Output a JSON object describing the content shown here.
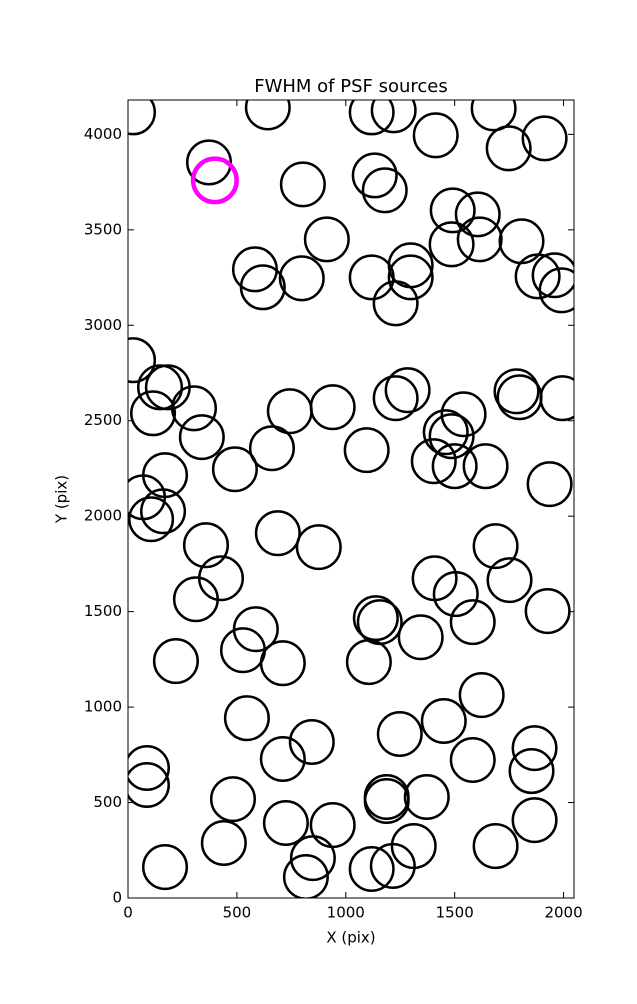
{
  "chart_data": {
    "type": "scatter",
    "title": "FWHM of PSF sources",
    "x_label": "X (pix)",
    "y_label": "Y (pix)",
    "xlim": [
      0,
      2048
    ],
    "ylim": [
      0,
      4180
    ],
    "xticks": [
      0,
      500,
      1000,
      1500,
      2000
    ],
    "yticks": [
      0,
      500,
      1000,
      1500,
      2000,
      2500,
      3000,
      3500,
      4000
    ],
    "radius": 100,
    "grid": false,
    "series": [
      {
        "color": "#000000",
        "line_width": 2.5,
        "x": [
          23,
          642,
          1119,
          1220,
          1679,
          1413,
          1913,
          1748,
          372,
          803,
          1133,
          1179,
          1491,
          1606,
          913,
          1807,
          1486,
          1615,
          583,
          619,
          798,
          1119,
          1298,
          1298,
          1229,
          1881,
          1959,
          1991,
          23,
          147,
          183,
          1284,
          1229,
          1784,
          1798,
          1995,
          303,
          743,
          940,
          115,
          1541,
          339,
          1459,
          1486,
          1096,
          661,
          491,
          1404,
          1500,
          1642,
          170,
          1936,
          69,
          106,
          161,
          688,
          358,
          876,
          1688,
          427,
          1408,
          1752,
          312,
          1505,
          1927,
          1138,
          1156,
          1583,
          587,
          528,
          711,
          220,
          1344,
          1106,
          1624,
          546,
          1450,
          1248,
          844,
          711,
          1867,
          1583,
          87,
          87,
          1853,
          1188,
          1188,
          1372,
          482,
          725,
          940,
          1867,
          440,
          1312,
          1688,
          849,
          170,
          1119,
          1216,
          817
        ],
        "y": [
          4115,
          4141,
          4115,
          4126,
          4136,
          3995,
          3979,
          3927,
          3853,
          3738,
          3785,
          3707,
          3602,
          3581,
          3450,
          3440,
          3424,
          3450,
          3293,
          3199,
          3246,
          3251,
          3314,
          3251,
          3115,
          3256,
          3262,
          3183,
          2817,
          2675,
          2675,
          2660,
          2618,
          2654,
          2623,
          2618,
          2565,
          2550,
          2571,
          2539,
          2534,
          2414,
          2440,
          2419,
          2346,
          2356,
          2246,
          2288,
          2262,
          2262,
          2215,
          2168,
          2099,
          1984,
          2026,
          1911,
          1848,
          1838,
          1843,
          1675,
          1675,
          1665,
          1565,
          1592,
          1503,
          1466,
          1445,
          1445,
          1408,
          1298,
          1230,
          1241,
          1366,
          1236,
          1063,
          942,
          927,
          859,
          817,
          728,
          785,
          723,
          681,
          592,
          665,
          529,
          508,
          529,
          518,
          393,
          382,
          408,
          288,
          272,
          272,
          209,
          162,
          152,
          168,
          110
        ]
      },
      {
        "color": "#ff00ff",
        "line_width": 4.5,
        "x": [
          399
        ],
        "y": [
          3759
        ]
      }
    ]
  }
}
